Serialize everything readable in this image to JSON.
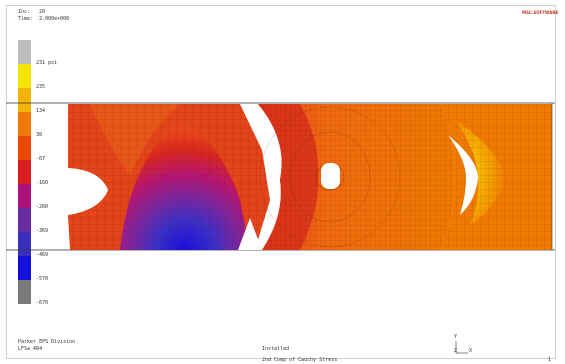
{
  "header": {
    "inc_label": "Inc:",
    "inc_value": "20",
    "time_label": "Time:",
    "time_value": "2.000e+000"
  },
  "logo_text": "MSC.SOFTWARE",
  "legend": {
    "unit": "psi",
    "labels": [
      "231",
      "235",
      "134",
      "38",
      "-67",
      "-160",
      "-260",
      "-369",
      "-469",
      "-570",
      "-670"
    ],
    "colors": [
      "#bdbdbd",
      "#f5e600",
      "#f2b400",
      "#f07a00",
      "#ea4a00",
      "#d81e1e",
      "#b0127d",
      "#6a2aa1",
      "#3b2fbf",
      "#1410dc",
      "#7a7a7a"
    ]
  },
  "footer": {
    "left_line1": "Parker EPS Division",
    "left_line2": "LFSa 404",
    "center": "Installed",
    "bottom": "2nd Comp of Cauchy Stress",
    "page": "1",
    "axis_y": "Y",
    "axis_zx": "Z",
    "axis_x": "X"
  }
}
